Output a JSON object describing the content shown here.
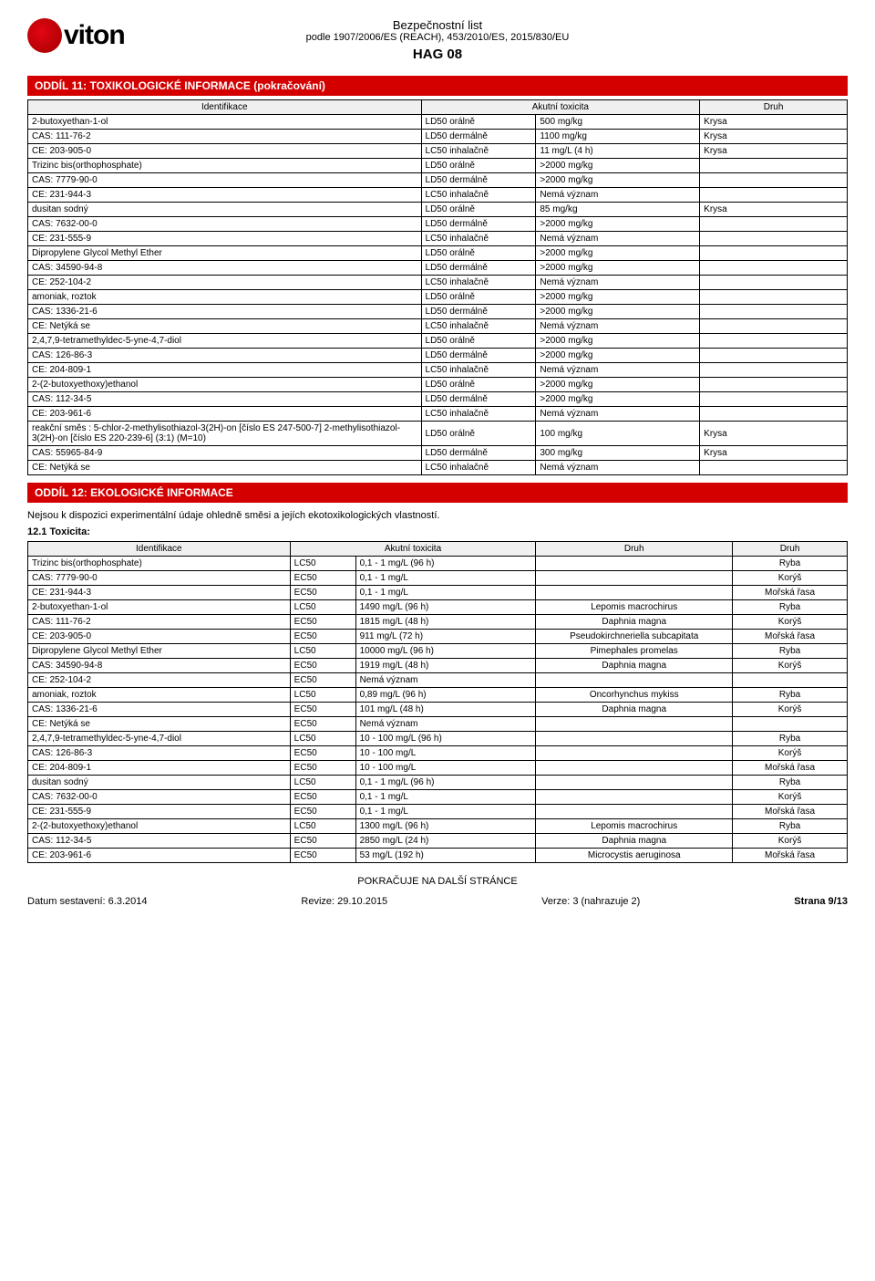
{
  "header": {
    "logo_text": "viton",
    "line1": "Bezpečnostní list",
    "line2": "podle 1907/2006/ES (REACH), 453/2010/ES, 2015/830/EU",
    "line3": "HAG 08"
  },
  "section11": {
    "title": "ODDÍL 11: TOXIKOLOGICKÉ INFORMACE (pokračování)",
    "columns": [
      "Identifikace",
      "Akutní toxicita",
      "Druh"
    ],
    "rows": [
      [
        "2-butoxyethan-1-ol",
        "LD50 orálně",
        "500 mg/kg",
        "Krysa"
      ],
      [
        "CAS: 111-76-2",
        "LD50 dermálně",
        "1100 mg/kg",
        "Krysa"
      ],
      [
        "CE: 203-905-0",
        "LC50 inhalačně",
        "11 mg/L (4 h)",
        "Krysa"
      ],
      [
        "Trizinc bis(orthophosphate)",
        "LD50 orálně",
        ">2000 mg/kg",
        ""
      ],
      [
        "CAS: 7779-90-0",
        "LD50 dermálně",
        ">2000 mg/kg",
        ""
      ],
      [
        "CE: 231-944-3",
        "LC50 inhalačně",
        "Nemá význam",
        ""
      ],
      [
        "dusitan sodný",
        "LD50 orálně",
        "85 mg/kg",
        "Krysa"
      ],
      [
        "CAS: 7632-00-0",
        "LD50 dermálně",
        ">2000 mg/kg",
        ""
      ],
      [
        "CE: 231-555-9",
        "LC50 inhalačně",
        "Nemá význam",
        ""
      ],
      [
        "Dipropylene Glycol Methyl Ether",
        "LD50 orálně",
        ">2000 mg/kg",
        ""
      ],
      [
        "CAS: 34590-94-8",
        "LD50 dermálně",
        ">2000 mg/kg",
        ""
      ],
      [
        "CE: 252-104-2",
        "LC50 inhalačně",
        "Nemá význam",
        ""
      ],
      [
        "amoniak, roztok",
        "LD50 orálně",
        ">2000 mg/kg",
        ""
      ],
      [
        "CAS: 1336-21-6",
        "LD50 dermálně",
        ">2000 mg/kg",
        ""
      ],
      [
        "CE: Netýká se",
        "LC50 inhalačně",
        "Nemá význam",
        ""
      ],
      [
        "2,4,7,9-tetramethyldec-5-yne-4,7-diol",
        "LD50 orálně",
        ">2000 mg/kg",
        ""
      ],
      [
        "CAS: 126-86-3",
        "LD50 dermálně",
        ">2000 mg/kg",
        ""
      ],
      [
        "CE: 204-809-1",
        "LC50 inhalačně",
        "Nemá význam",
        ""
      ],
      [
        "2-(2-butoxyethoxy)ethanol",
        "LD50 orálně",
        ">2000 mg/kg",
        ""
      ],
      [
        "CAS: 112-34-5",
        "LD50 dermálně",
        ">2000 mg/kg",
        ""
      ],
      [
        "CE: 203-961-6",
        "LC50 inhalačně",
        "Nemá význam",
        ""
      ],
      [
        "reakční směs : 5-chlor-2-methylisothiazol-3(2H)-on [číslo ES 247-500-7] 2-methylisothiazol-3(2H)-on [číslo ES 220-239-6] (3:1) (M=10)",
        "LD50 orálně",
        "100 mg/kg",
        "Krysa"
      ],
      [
        "CAS: 55965-84-9",
        "LD50 dermálně",
        "300 mg/kg",
        "Krysa"
      ],
      [
        "CE: Netýká se",
        "LC50 inhalačně",
        "Nemá význam",
        ""
      ]
    ]
  },
  "section12": {
    "title": "ODDÍL 12: EKOLOGICKÉ INFORMACE",
    "intro": "Nejsou k dispozici experimentální údaje ohledně směsi a jejích ekotoxikologických vlastností.",
    "sub": "12.1  Toxicita:",
    "columns": [
      "Identifikace",
      "Akutní toxicita",
      "Druh",
      "Druh"
    ],
    "rows": [
      [
        "Trizinc bis(orthophosphate)",
        "LC50",
        "0,1 - 1 mg/L (96 h)",
        "",
        "Ryba"
      ],
      [
        "CAS: 7779-90-0",
        "EC50",
        "0,1 - 1 mg/L",
        "",
        "Korýš"
      ],
      [
        "CE: 231-944-3",
        "EC50",
        "0,1 - 1 mg/L",
        "",
        "Mořská řasa"
      ],
      [
        "2-butoxyethan-1-ol",
        "LC50",
        "1490 mg/L (96 h)",
        "Lepomis macrochirus",
        "Ryba"
      ],
      [
        "CAS: 111-76-2",
        "EC50",
        "1815 mg/L (48 h)",
        "Daphnia magna",
        "Korýš"
      ],
      [
        "CE: 203-905-0",
        "EC50",
        "911 mg/L (72 h)",
        "Pseudokirchneriella subcapitata",
        "Mořská řasa"
      ],
      [
        "Dipropylene Glycol Methyl Ether",
        "LC50",
        "10000 mg/L (96 h)",
        "Pimephales promelas",
        "Ryba"
      ],
      [
        "CAS: 34590-94-8",
        "EC50",
        "1919 mg/L (48 h)",
        "Daphnia magna",
        "Korýš"
      ],
      [
        "CE: 252-104-2",
        "EC50",
        "Nemá význam",
        "",
        ""
      ],
      [
        "amoniak, roztok",
        "LC50",
        "0,89 mg/L (96 h)",
        "Oncorhynchus mykiss",
        "Ryba"
      ],
      [
        "CAS: 1336-21-6",
        "EC50",
        "101 mg/L (48 h)",
        "Daphnia magna",
        "Korýš"
      ],
      [
        "CE: Netýká se",
        "EC50",
        "Nemá význam",
        "",
        ""
      ],
      [
        "2,4,7,9-tetramethyldec-5-yne-4,7-diol",
        "LC50",
        "10 - 100 mg/L (96 h)",
        "",
        "Ryba"
      ],
      [
        "CAS: 126-86-3",
        "EC50",
        "10 - 100 mg/L",
        "",
        "Korýš"
      ],
      [
        "CE: 204-809-1",
        "EC50",
        "10 - 100 mg/L",
        "",
        "Mořská řasa"
      ],
      [
        "dusitan sodný",
        "LC50",
        "0,1 - 1 mg/L (96 h)",
        "",
        "Ryba"
      ],
      [
        "CAS: 7632-00-0",
        "EC50",
        "0,1 - 1 mg/L",
        "",
        "Korýš"
      ],
      [
        "CE: 231-555-9",
        "EC50",
        "0,1 - 1 mg/L",
        "",
        "Mořská řasa"
      ],
      [
        "2-(2-butoxyethoxy)ethanol",
        "LC50",
        "1300 mg/L (96 h)",
        "Lepomis macrochirus",
        "Ryba"
      ],
      [
        "CAS: 112-34-5",
        "EC50",
        "2850 mg/L (24 h)",
        "Daphnia magna",
        "Korýš"
      ],
      [
        "CE: 203-961-6",
        "EC50",
        "53 mg/L (192 h)",
        "Microcystis aeruginosa",
        "Mořská řasa"
      ]
    ]
  },
  "footer": {
    "continue": "POKRAČUJE NA DALŠÍ STRÁNCE",
    "left": "Datum sestavení: 6.3.2014",
    "mid1": "Revize: 29.10.2015",
    "mid2": "Verze: 3 (nahrazuje 2)",
    "right": "Strana 9/13"
  }
}
